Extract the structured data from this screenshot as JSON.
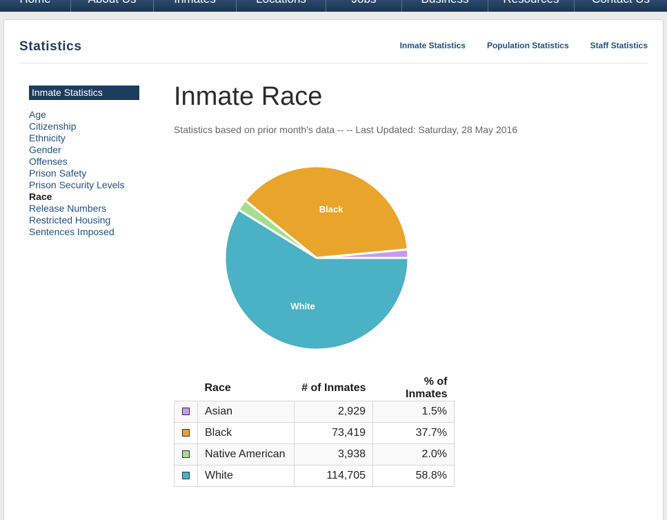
{
  "nav": {
    "items": [
      "Home",
      "About Us",
      "Inmates",
      "Locations",
      "Jobs",
      "Business",
      "Resources",
      "Contact Us"
    ]
  },
  "section": {
    "title": "Statistics",
    "links": [
      "Inmate Statistics",
      "Population Statistics",
      "Staff Statistics"
    ]
  },
  "sidebar": {
    "heading": "Inmate Statistics",
    "items": [
      "Age",
      "Citizenship",
      "Ethnicity",
      "Gender",
      "Offenses",
      "Prison Safety",
      "Prison Security Levels",
      "Race",
      "Release Numbers",
      "Restricted Housing",
      "Sentences Imposed"
    ],
    "active": "Race"
  },
  "main": {
    "title": "Inmate Race",
    "subtitle": "Statistics based on prior month's data -- -- Last Updated: Saturday, 28 May 2016"
  },
  "chart_data": {
    "type": "pie",
    "title": "Inmate Race",
    "categories": [
      "Asian",
      "Black",
      "Native American",
      "White"
    ],
    "values": [
      1.5,
      37.7,
      2.0,
      58.8
    ],
    "colors": [
      "#c59af2",
      "#e9a42b",
      "#a6de8f",
      "#4ab2c4"
    ],
    "slice_labels": [
      "",
      "Black",
      "",
      "White"
    ]
  },
  "table": {
    "headers": [
      "Race",
      "# of Inmates",
      "% of Inmates"
    ],
    "rows": [
      {
        "race": "Asian",
        "count": "2,929",
        "pct": "1.5%",
        "color": "#c59af2"
      },
      {
        "race": "Black",
        "count": "73,419",
        "pct": "37.7%",
        "color": "#e9a42b"
      },
      {
        "race": "Native American",
        "count": "3,938",
        "pct": "2.0%",
        "color": "#a6de8f"
      },
      {
        "race": "White",
        "count": "114,705",
        "pct": "58.8%",
        "color": "#4ab2c4"
      }
    ]
  }
}
